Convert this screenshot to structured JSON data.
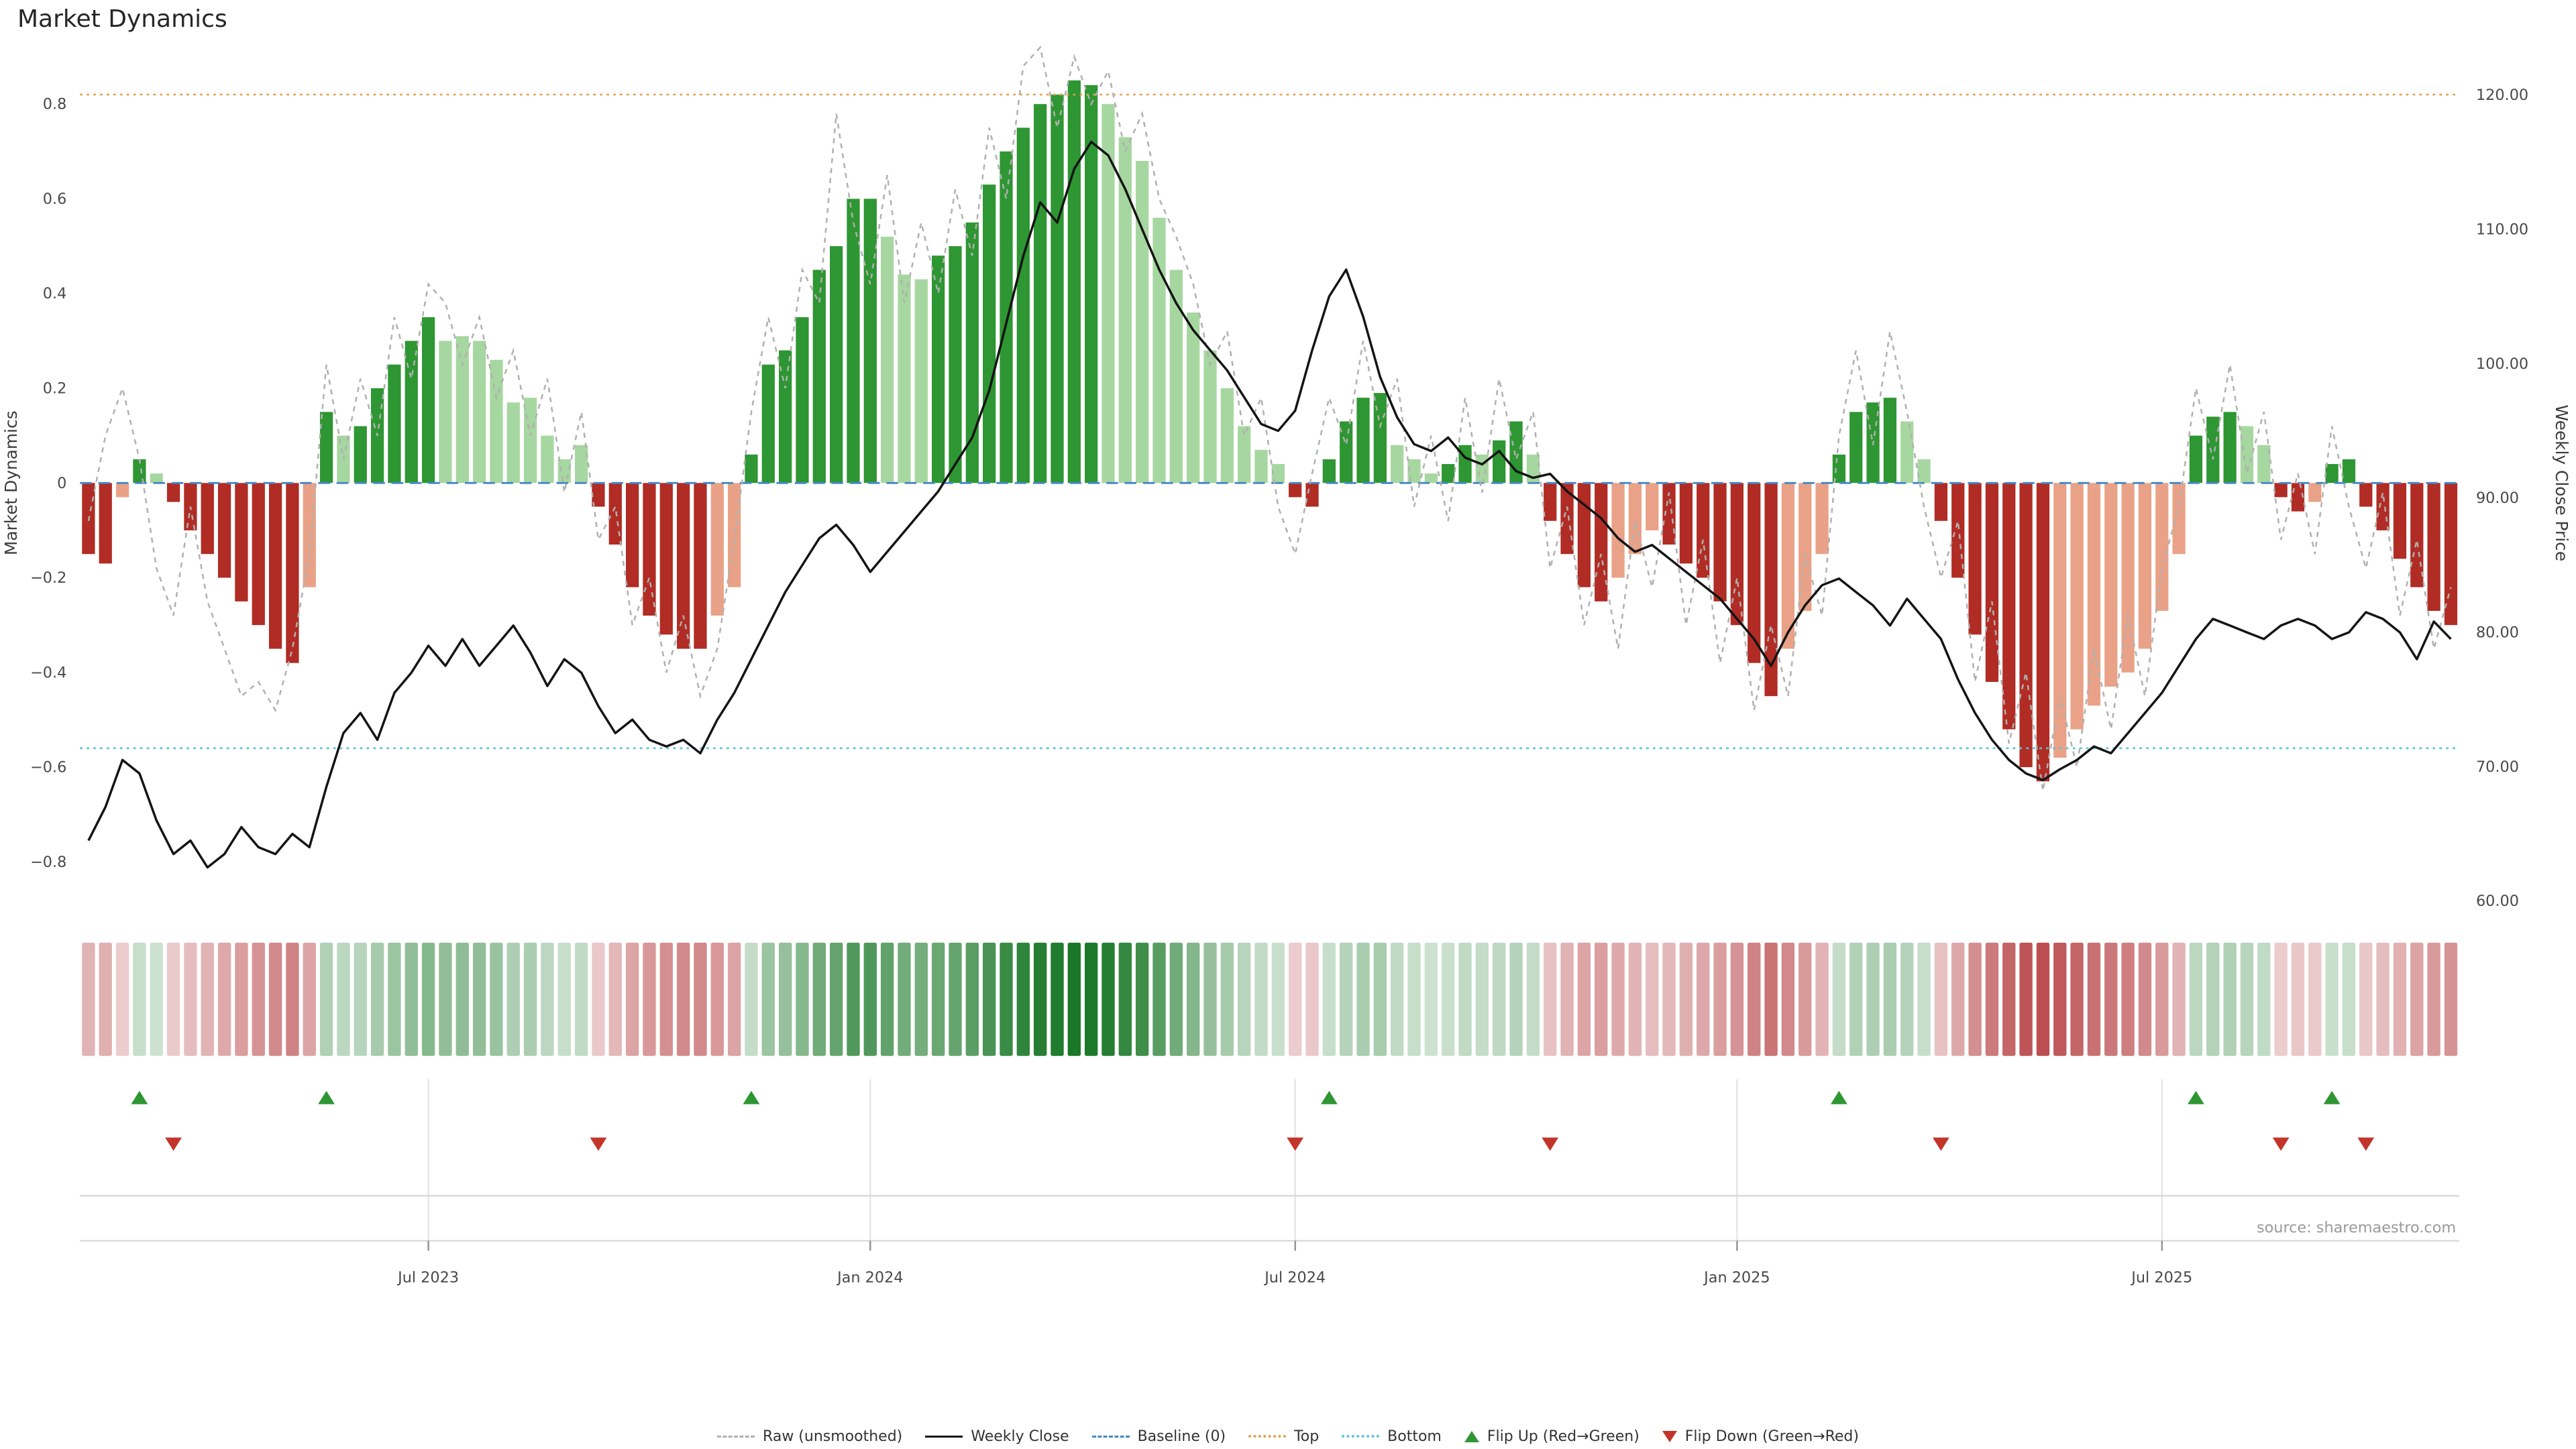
{
  "title": "Market Dynamics",
  "source": "source: sharemaestro.com",
  "colors": {
    "dark_green": "#2e9632",
    "light_green": "#a7d7a0",
    "dark_red": "#b02c24",
    "light_red": "#e9a287",
    "close_line": "#141414",
    "raw_line": "#b0b0b0",
    "baseline": "#4588c7",
    "top_line": "#e2a14f",
    "bottom_line": "#58c5da",
    "flip_up": "#2e9632",
    "flip_down": "#c3352b",
    "heat_green": "#1a7828",
    "heat_red": "#aa2023"
  },
  "legend": [
    {
      "id": "raw",
      "label": "Raw (unsmoothed)",
      "glyph": "line-dashed-gray"
    },
    {
      "id": "weekly-close",
      "label": "Weekly Close",
      "glyph": "line-solid-black"
    },
    {
      "id": "baseline",
      "label": "Baseline (0)",
      "glyph": "line-dashed-blue"
    },
    {
      "id": "top",
      "label": "Top",
      "glyph": "line-dotted-orange"
    },
    {
      "id": "bottom",
      "label": "Bottom",
      "glyph": "line-dotted-cyan"
    },
    {
      "id": "flip-up",
      "label": "Flip Up (Red→Green)",
      "glyph": "triangle-up-green"
    },
    {
      "id": "flip-down",
      "label": "Flip Down (Green→Red)",
      "glyph": "triangle-down-red"
    }
  ],
  "chart_data": {
    "type": "combo-bar-line-heatmap",
    "left_axis": {
      "label": "Market Dynamics",
      "min": -0.9,
      "max": 0.9,
      "ticks": [
        {
          "value": 0.8,
          "label": "0.8"
        },
        {
          "value": 0.6,
          "label": "0.6"
        },
        {
          "value": 0.4,
          "label": "0.4"
        },
        {
          "value": 0.2,
          "label": "0.2"
        },
        {
          "value": 0.0,
          "label": "0"
        },
        {
          "value": -0.2,
          "label": "−0.2"
        },
        {
          "value": -0.4,
          "label": "−0.4"
        },
        {
          "value": -0.6,
          "label": "−0.6"
        },
        {
          "value": -0.8,
          "label": "−0.8"
        }
      ]
    },
    "right_axis": {
      "label": "Weekly Close Price",
      "min": 60,
      "max": 120,
      "ticks": [
        {
          "value": 120,
          "label": "120.00"
        },
        {
          "value": 110,
          "label": "110.00"
        },
        {
          "value": 100,
          "label": "100.00"
        },
        {
          "value": 90,
          "label": "90.00"
        },
        {
          "value": 80,
          "label": "80.00"
        },
        {
          "value": 70,
          "label": "70.00"
        },
        {
          "value": 60,
          "label": "60.00"
        }
      ]
    },
    "x_axis": {
      "unit": "week",
      "count": 140,
      "ticks": [
        {
          "label": "Jul 2023",
          "week": 20
        },
        {
          "label": "Jan 2024",
          "week": 46
        },
        {
          "label": "Jul 2024",
          "week": 71
        },
        {
          "label": "Jan 2025",
          "week": 97
        },
        {
          "label": "Jul 2025",
          "week": 122
        }
      ]
    },
    "reference_lines": {
      "baseline": 0.0,
      "top": 0.82,
      "bottom": -0.56
    },
    "bars": {
      "name": "Market Dynamics",
      "values": [
        -0.15,
        -0.17,
        -0.03,
        0.05,
        0.02,
        -0.04,
        -0.1,
        -0.15,
        -0.2,
        -0.25,
        -0.3,
        -0.35,
        -0.38,
        -0.22,
        0.15,
        0.1,
        0.12,
        0.2,
        0.25,
        0.3,
        0.35,
        0.3,
        0.31,
        0.3,
        0.26,
        0.17,
        0.18,
        0.1,
        0.05,
        0.08,
        -0.05,
        -0.13,
        -0.22,
        -0.28,
        -0.32,
        -0.35,
        -0.35,
        -0.28,
        -0.22,
        0.06,
        0.25,
        0.28,
        0.35,
        0.45,
        0.5,
        0.6,
        0.6,
        0.52,
        0.44,
        0.43,
        0.48,
        0.5,
        0.55,
        0.63,
        0.7,
        0.75,
        0.8,
        0.82,
        0.85,
        0.84,
        0.8,
        0.73,
        0.68,
        0.56,
        0.45,
        0.36,
        0.28,
        0.2,
        0.12,
        0.07,
        0.04,
        -0.03,
        -0.05,
        0.05,
        0.13,
        0.18,
        0.19,
        0.08,
        0.05,
        0.02,
        0.04,
        0.08,
        0.06,
        0.09,
        0.13,
        0.06,
        -0.08,
        -0.15,
        -0.22,
        -0.25,
        -0.2,
        -0.15,
        -0.1,
        -0.13,
        -0.17,
        -0.2,
        -0.25,
        -0.3,
        -0.38,
        -0.45,
        -0.35,
        -0.27,
        -0.15,
        0.06,
        0.15,
        0.17,
        0.18,
        0.13,
        0.05,
        -0.08,
        -0.2,
        -0.32,
        -0.42,
        -0.52,
        -0.6,
        -0.63,
        -0.58,
        -0.52,
        -0.47,
        -0.43,
        -0.4,
        -0.35,
        -0.27,
        -0.15,
        0.1,
        0.14,
        0.15,
        0.12,
        0.08,
        -0.03,
        -0.06,
        -0.04,
        0.04,
        0.05,
        -0.05,
        -0.1,
        -0.16,
        -0.22,
        -0.27,
        -0.3
      ],
      "colors": [
        "dr",
        "dr",
        "lr",
        "dg",
        "lg",
        "dr",
        "dr",
        "dr",
        "dr",
        "dr",
        "dr",
        "dr",
        "dr",
        "lr",
        "dg",
        "lg",
        "dg",
        "dg",
        "dg",
        "dg",
        "dg",
        "lg",
        "lg",
        "lg",
        "lg",
        "lg",
        "lg",
        "lg",
        "lg",
        "lg",
        "dr",
        "dr",
        "dr",
        "dr",
        "dr",
        "dr",
        "dr",
        "lr",
        "lr",
        "dg",
        "dg",
        "dg",
        "dg",
        "dg",
        "dg",
        "dg",
        "dg",
        "lg",
        "lg",
        "lg",
        "dg",
        "dg",
        "dg",
        "dg",
        "dg",
        "dg",
        "dg",
        "dg",
        "dg",
        "dg",
        "lg",
        "lg",
        "lg",
        "lg",
        "lg",
        "lg",
        "lg",
        "lg",
        "lg",
        "lg",
        "lg",
        "dr",
        "dr",
        "dg",
        "dg",
        "dg",
        "dg",
        "lg",
        "lg",
        "lg",
        "dg",
        "dg",
        "lg",
        "dg",
        "dg",
        "lg",
        "dr",
        "dr",
        "dr",
        "dr",
        "lr",
        "lr",
        "lr",
        "dr",
        "dr",
        "dr",
        "dr",
        "dr",
        "dr",
        "dr",
        "lr",
        "lr",
        "lr",
        "dg",
        "dg",
        "dg",
        "dg",
        "lg",
        "lg",
        "dr",
        "dr",
        "dr",
        "dr",
        "dr",
        "dr",
        "dr",
        "lr",
        "lr",
        "lr",
        "lr",
        "lr",
        "lr",
        "lr",
        "lr",
        "dg",
        "dg",
        "dg",
        "lg",
        "lg",
        "dr",
        "dr",
        "lr",
        "dg",
        "dg",
        "dr",
        "dr",
        "dr",
        "dr",
        "dr",
        "dr"
      ]
    },
    "raw_line": {
      "name": "Raw (unsmoothed)",
      "values": [
        -0.08,
        0.1,
        0.2,
        0.05,
        -0.18,
        -0.28,
        -0.05,
        -0.25,
        -0.35,
        -0.45,
        -0.42,
        -0.48,
        -0.35,
        -0.15,
        0.25,
        0.05,
        0.22,
        0.1,
        0.35,
        0.22,
        0.42,
        0.38,
        0.25,
        0.35,
        0.18,
        0.28,
        0.1,
        0.22,
        -0.02,
        0.15,
        -0.12,
        -0.05,
        -0.3,
        -0.2,
        -0.4,
        -0.28,
        -0.45,
        -0.35,
        -0.12,
        0.15,
        0.35,
        0.2,
        0.45,
        0.38,
        0.78,
        0.55,
        0.42,
        0.65,
        0.38,
        0.55,
        0.4,
        0.62,
        0.48,
        0.75,
        0.6,
        0.88,
        0.92,
        0.75,
        0.9,
        0.8,
        0.87,
        0.7,
        0.78,
        0.6,
        0.52,
        0.42,
        0.25,
        0.32,
        0.1,
        0.18,
        -0.05,
        -0.15,
        0.02,
        0.18,
        0.08,
        0.3,
        0.12,
        0.22,
        -0.05,
        0.1,
        -0.08,
        0.18,
        -0.02,
        0.22,
        0.05,
        0.15,
        -0.18,
        -0.05,
        -0.3,
        -0.15,
        -0.35,
        -0.08,
        -0.22,
        -0.02,
        -0.3,
        -0.12,
        -0.38,
        -0.2,
        -0.48,
        -0.3,
        -0.45,
        -0.15,
        -0.28,
        0.1,
        0.28,
        0.08,
        0.32,
        0.15,
        -0.05,
        -0.2,
        -0.08,
        -0.42,
        -0.25,
        -0.55,
        -0.4,
        -0.65,
        -0.45,
        -0.6,
        -0.35,
        -0.52,
        -0.28,
        -0.45,
        -0.18,
        -0.05,
        0.2,
        0.05,
        0.25,
        0.02,
        0.15,
        -0.12,
        0.02,
        -0.15,
        0.12,
        -0.05,
        -0.18,
        -0.02,
        -0.28,
        -0.12,
        -0.35,
        -0.22
      ]
    },
    "close_line": {
      "name": "Weekly Close",
      "axis": "right",
      "values": [
        64.5,
        67,
        70.5,
        69.5,
        66,
        63.5,
        64.5,
        62.5,
        63.5,
        65.5,
        64,
        63.5,
        65,
        64,
        68.5,
        72.5,
        74,
        72,
        75.5,
        77,
        79,
        77.5,
        79.5,
        77.5,
        79,
        80.5,
        78.5,
        76,
        78,
        77,
        74.5,
        72.5,
        73.5,
        72,
        71.5,
        72,
        71,
        73.5,
        75.5,
        78,
        80.5,
        83,
        85,
        87,
        88,
        86.5,
        84.5,
        86,
        87.5,
        89,
        90.5,
        92.5,
        94.5,
        98,
        103,
        108,
        112,
        110.5,
        114.5,
        116.5,
        115.5,
        113,
        110,
        107,
        104.5,
        102.5,
        101,
        99.5,
        97.5,
        95.5,
        95,
        96.5,
        101,
        105,
        107,
        103.5,
        99,
        96,
        94,
        93.5,
        94.5,
        93,
        92.5,
        93.5,
        92,
        91.5,
        91.8,
        90.5,
        89.5,
        88.5,
        87,
        86,
        86.5,
        85.5,
        84.5,
        83.5,
        82.5,
        81,
        79.5,
        77.5,
        80,
        82,
        83.5,
        84,
        83,
        82,
        80.5,
        82.5,
        81,
        79.5,
        76.5,
        74,
        72,
        70.5,
        69.5,
        69,
        69.8,
        70.5,
        71.5,
        71,
        72.5,
        74,
        75.5,
        77.5,
        79.5,
        81,
        80.5,
        80,
        79.5,
        80.5,
        81,
        80.5,
        79.5,
        80,
        81.5,
        81,
        80,
        78,
        80.8,
        79.5
      ]
    },
    "flip_up_weeks": [
      3,
      14,
      39,
      73,
      103,
      124,
      132
    ],
    "flip_down_weeks": [
      5,
      30,
      71,
      86,
      109,
      129,
      134
    ],
    "heatmap": {
      "note": "weekly cells colored by bar value, red-white-green scale"
    }
  }
}
